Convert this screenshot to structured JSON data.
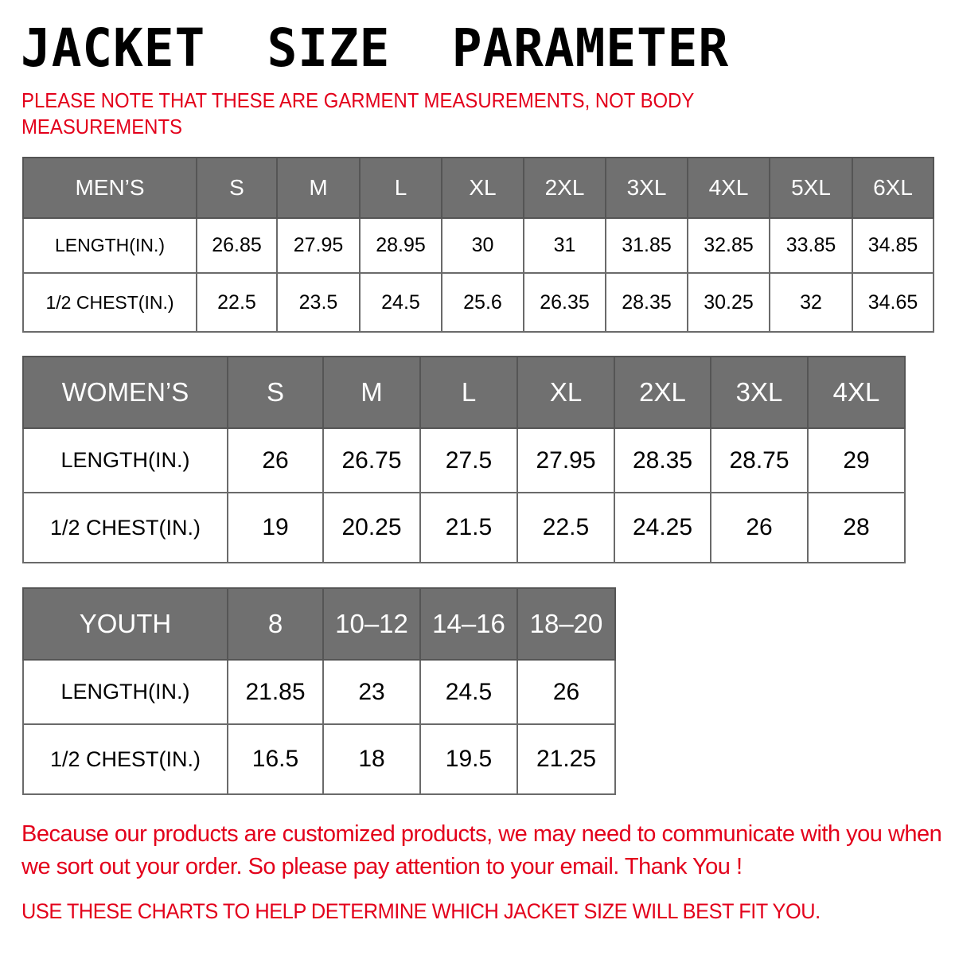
{
  "title": "JACKET  SIZE  PARAMETER",
  "note": "PLEASE NOTE THAT THESE ARE GARMENT MEASUREMENTS, NOT BODY MEASUREMENTS",
  "colors": {
    "header_bg": "#707070",
    "header_text": "#ffffff",
    "note_red": "#e3001b"
  },
  "tables": {
    "men": {
      "header": [
        "MEN’S",
        "S",
        "M",
        "L",
        "XL",
        "2XL",
        "3XL",
        "4XL",
        "5XL",
        "6XL"
      ],
      "rows": [
        [
          "LENGTH(IN.)",
          "26.85",
          "27.95",
          "28.95",
          "30",
          "31",
          "31.85",
          "32.85",
          "33.85",
          "34.85"
        ],
        [
          "1/2 CHEST(IN.)",
          "22.5",
          "23.5",
          "24.5",
          "25.6",
          "26.35",
          "28.35",
          "30.25",
          "32",
          "34.65"
        ]
      ]
    },
    "women": {
      "header": [
        "WOMEN’S",
        "S",
        "M",
        "L",
        "XL",
        "2XL",
        "3XL",
        "4XL"
      ],
      "rows": [
        [
          "LENGTH(IN.)",
          "26",
          "26.75",
          "27.5",
          "27.95",
          "28.35",
          "28.75",
          "29"
        ],
        [
          "1/2 CHEST(IN.)",
          "19",
          "20.25",
          "21.5",
          "22.5",
          "24.25",
          "26",
          "28"
        ]
      ]
    },
    "youth": {
      "header": [
        "YOUTH",
        "8",
        "10–12",
        "14–16",
        "18–20"
      ],
      "rows": [
        [
          "LENGTH(IN.)",
          "21.85",
          "23",
          "24.5",
          "26"
        ],
        [
          "1/2 CHEST(IN.)",
          "16.5",
          "18",
          "19.5",
          "21.25"
        ]
      ]
    }
  },
  "message": "Because our products are customized products, we may need to communicate with you when we sort out your order. So please pay attention to your email. Thank You !",
  "use_note": "USE THESE CHARTS TO HELP DETERMINE WHICH JACKET SIZE WILL BEST FIT YOU."
}
